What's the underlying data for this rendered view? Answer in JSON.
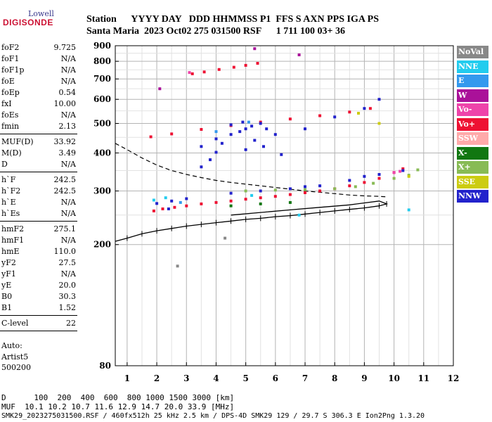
{
  "logo": {
    "top": "Lowell",
    "main": "DIGISONDE"
  },
  "header": {
    "line1": "Station      YYYY DAY   DDD HHMMSS P1  FFS S AXN PPS IGA PS",
    "line2": "Santa Maria  2023 Oct02 275 031500 RSF      1 711 100 03+ 36"
  },
  "params": {
    "group1": [
      {
        "label": "foF2",
        "value": "9.725"
      },
      {
        "label": "foF1",
        "value": "N/A"
      },
      {
        "label": "foF1p",
        "value": "N/A"
      },
      {
        "label": "foE",
        "value": "N/A"
      },
      {
        "label": "foEp",
        "value": "0.54"
      },
      {
        "label": "fxI",
        "value": "10.00"
      },
      {
        "label": "foEs",
        "value": "N/A"
      },
      {
        "label": "fmin",
        "value": "2.13"
      }
    ],
    "group2": [
      {
        "label": "MUF(D)",
        "value": "33.92"
      },
      {
        "label": "M(D)",
        "value": "3.49"
      },
      {
        "label": "D",
        "value": "N/A"
      }
    ],
    "group3": [
      {
        "label": "h`F",
        "value": "242.5"
      },
      {
        "label": "h`F2",
        "value": "242.5"
      },
      {
        "label": "h`E",
        "value": "N/A"
      },
      {
        "label": "h`Es",
        "value": "N/A"
      }
    ],
    "group4": [
      {
        "label": "hmF2",
        "value": "275.1"
      },
      {
        "label": "hmF1",
        "value": "N/A"
      },
      {
        "label": "hmE",
        "value": "110.0"
      },
      {
        "label": "yF2",
        "value": "27.5"
      },
      {
        "label": "yF1",
        "value": "N/A"
      },
      {
        "label": "yE",
        "value": "20.0"
      },
      {
        "label": "B0",
        "value": "30.3"
      },
      {
        "label": "B1",
        "value": "1.52"
      }
    ],
    "group5": [
      {
        "label": "C-level",
        "value": "22"
      }
    ]
  },
  "misc": {
    "auto": "Auto:",
    "artist": "Artist5",
    "code": "500200"
  },
  "legend": [
    {
      "label": "NoVal",
      "color": "#888888",
      "text": "#ffffff"
    },
    {
      "label": "NNE",
      "color": "#22ccee",
      "text": "#ffffff"
    },
    {
      "label": "E",
      "color": "#3399ee",
      "text": "#ffffff"
    },
    {
      "label": "W",
      "color": "#aa1199",
      "text": "#ffffff"
    },
    {
      "label": "Vo-",
      "color": "#ee44aa",
      "text": "#ffffff"
    },
    {
      "label": "Vo+",
      "color": "#ee1133",
      "text": "#ffffff"
    },
    {
      "label": "SSW",
      "color": "#ffaaaa",
      "text": "#ffffff"
    },
    {
      "label": "X-",
      "color": "#117711",
      "text": "#ffffff"
    },
    {
      "label": "X+",
      "color": "#88bb55",
      "text": "#ffffff"
    },
    {
      "label": "SSE",
      "color": "#cccc11",
      "text": "#ffffff"
    },
    {
      "label": "NNW",
      "color": "#2222cc",
      "text": "#ffffff"
    }
  ],
  "footer": {
    "dist_line": "D      100  200  400  600  800 1000 1500 3000 [km]",
    "muf_line": "MUF  10.1 10.2 10.7 11.6 12.9 14.7 20.0 33.9 [MHz]",
    "info_line": "SMK29_2023275031500.RSF / 460fx512h 25 kHz 2.5 km / DPS-4D SMK29 129 / 29.7 S 306.3 E Ion2Png 1.3.20"
  },
  "chart_data": {
    "type": "scatter",
    "x_ticks": [
      "1",
      "2",
      "3",
      "4",
      "5",
      "6",
      "7",
      "8",
      "9",
      "10",
      "11",
      "12"
    ],
    "y_ticks": [
      "80",
      "200",
      "300",
      "400",
      "500",
      "600",
      "700",
      "800",
      "900"
    ],
    "xlim": [
      0.6,
      12.0
    ],
    "y_scale": "log",
    "ylim": [
      80,
      900
    ],
    "grid": true,
    "legend_placement": "right",
    "profile_dashed": [
      [
        0.6,
        430
      ],
      [
        1.0,
        410
      ],
      [
        1.5,
        385
      ],
      [
        2.0,
        365
      ],
      [
        2.5,
        350
      ],
      [
        3.0,
        340
      ],
      [
        3.5,
        332
      ],
      [
        4.0,
        325
      ],
      [
        4.5,
        320
      ],
      [
        5.0,
        316
      ],
      [
        5.5,
        312
      ],
      [
        6.0,
        308
      ],
      [
        6.5,
        304
      ],
      [
        7.0,
        300
      ],
      [
        7.5,
        297
      ],
      [
        8.0,
        294
      ],
      [
        8.5,
        291
      ],
      [
        9.0,
        289
      ],
      [
        9.5,
        288
      ],
      [
        9.75,
        287
      ]
    ],
    "trace_black": [
      [
        0.6,
        205
      ],
      [
        1.0,
        210
      ],
      [
        1.5,
        217
      ],
      [
        2.0,
        222
      ],
      [
        2.5,
        226
      ],
      [
        3.0,
        230
      ],
      [
        3.5,
        233
      ],
      [
        4.0,
        236
      ],
      [
        4.5,
        239
      ],
      [
        5.0,
        242
      ],
      [
        5.5,
        244
      ],
      [
        6.0,
        247
      ],
      [
        6.5,
        249
      ],
      [
        7.0,
        252
      ],
      [
        7.5,
        255
      ],
      [
        8.0,
        258
      ],
      [
        8.5,
        261
      ],
      [
        9.0,
        264
      ],
      [
        9.5,
        268
      ],
      [
        9.75,
        272
      ],
      [
        9.5,
        278
      ],
      [
        8.5,
        270
      ],
      [
        7.5,
        265
      ],
      [
        6.5,
        260
      ],
      [
        5.5,
        255
      ],
      [
        4.5,
        250
      ]
    ],
    "series": [
      {
        "name": "Vo+",
        "color": "#ee1133",
        "values": [
          [
            1.9,
            258
          ],
          [
            2.2,
            262
          ],
          [
            2.6,
            265
          ],
          [
            3.0,
            268
          ],
          [
            3.5,
            272
          ],
          [
            4.0,
            275
          ],
          [
            4.5,
            278
          ],
          [
            5.0,
            282
          ],
          [
            5.5,
            285
          ],
          [
            6.0,
            288
          ],
          [
            6.5,
            292
          ],
          [
            7.0,
            296
          ],
          [
            7.5,
            300
          ],
          [
            8.0,
            305
          ],
          [
            8.5,
            312
          ],
          [
            9.0,
            320
          ],
          [
            9.5,
            330
          ],
          [
            10.0,
            345
          ],
          [
            10.3,
            355
          ],
          [
            3.2,
            728
          ],
          [
            3.6,
            738
          ],
          [
            4.1,
            752
          ],
          [
            4.6,
            765
          ],
          [
            5.0,
            776
          ],
          [
            5.4,
            788
          ],
          [
            1.8,
            452
          ],
          [
            2.5,
            462
          ],
          [
            3.5,
            478
          ],
          [
            4.5,
            492
          ],
          [
            5.5,
            505
          ],
          [
            6.5,
            517
          ],
          [
            7.5,
            530
          ],
          [
            8.5,
            545
          ],
          [
            9.2,
            560
          ]
        ]
      },
      {
        "name": "NNW",
        "color": "#2222cc",
        "values": [
          [
            3.5,
            420
          ],
          [
            4.0,
            445
          ],
          [
            4.5,
            460
          ],
          [
            4.8,
            470
          ],
          [
            5.0,
            480
          ],
          [
            5.2,
            490
          ],
          [
            5.5,
            500
          ],
          [
            5.7,
            480
          ],
          [
            4.2,
            430
          ],
          [
            5.3,
            440
          ],
          [
            5.6,
            420
          ],
          [
            4.0,
            402
          ],
          [
            5.0,
            410
          ],
          [
            4.5,
            495
          ],
          [
            4.9,
            505
          ],
          [
            6.0,
            460
          ],
          [
            7.0,
            480
          ],
          [
            8.0,
            525
          ],
          [
            9.0,
            560
          ],
          [
            9.5,
            600
          ],
          [
            2.0,
            273
          ],
          [
            2.5,
            278
          ],
          [
            3.0,
            283
          ],
          [
            4.5,
            295
          ],
          [
            5.5,
            300
          ],
          [
            6.5,
            305
          ],
          [
            7.0,
            310
          ],
          [
            7.5,
            312
          ],
          [
            8.5,
            325
          ],
          [
            9.0,
            335
          ],
          [
            9.5,
            340
          ],
          [
            10.3,
            350
          ],
          [
            3.5,
            360
          ],
          [
            3.8,
            380
          ],
          [
            6.2,
            395
          ],
          [
            2.4,
            262
          ]
        ]
      },
      {
        "name": "X+",
        "color": "#88bb55",
        "values": [
          [
            5.0,
            300
          ],
          [
            6.0,
            302
          ],
          [
            7.0,
            303
          ],
          [
            8.0,
            305
          ],
          [
            8.7,
            310
          ],
          [
            9.3,
            318
          ],
          [
            10.0,
            330
          ],
          [
            10.5,
            338
          ],
          [
            10.8,
            352
          ]
        ]
      },
      {
        "name": "X-",
        "color": "#117711",
        "values": [
          [
            4.5,
            268
          ],
          [
            5.5,
            272
          ],
          [
            6.5,
            275
          ]
        ]
      },
      {
        "name": "NNE",
        "color": "#22ccee",
        "values": [
          [
            1.9,
            280
          ],
          [
            2.3,
            285
          ],
          [
            5.2,
            290
          ],
          [
            6.8,
            250
          ],
          [
            10.5,
            260
          ]
        ]
      },
      {
        "name": "SSE",
        "color": "#cccc11",
        "values": [
          [
            10.5,
            335
          ],
          [
            9.5,
            500
          ],
          [
            8.8,
            540
          ]
        ]
      },
      {
        "name": "W",
        "color": "#aa1199",
        "values": [
          [
            6.8,
            840
          ],
          [
            5.3,
            880
          ],
          [
            2.1,
            650
          ]
        ]
      },
      {
        "name": "Vo-",
        "color": "#ee44aa",
        "values": [
          [
            10.0,
            345
          ],
          [
            10.2,
            348
          ],
          [
            3.1,
            735
          ]
        ]
      },
      {
        "name": "E",
        "color": "#3399ee",
        "values": [
          [
            4.0,
            470
          ],
          [
            5.1,
            505
          ],
          [
            2.8,
            275
          ]
        ]
      },
      {
        "name": "NoVal",
        "color": "#888888",
        "values": [
          [
            4.3,
            210
          ],
          [
            2.7,
            170
          ]
        ]
      }
    ]
  }
}
